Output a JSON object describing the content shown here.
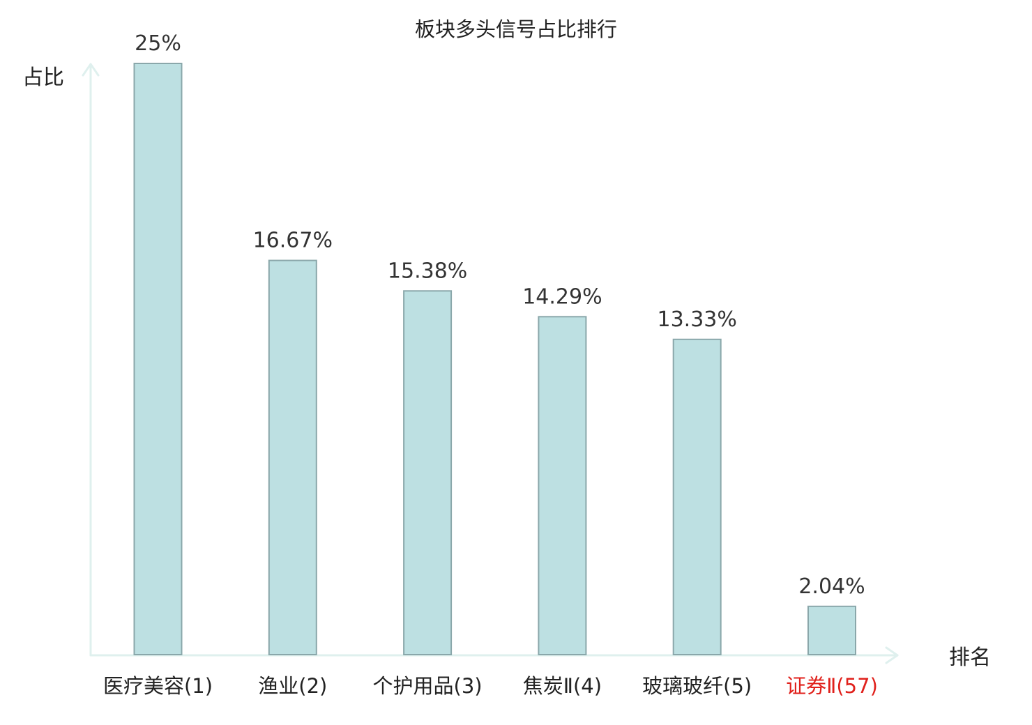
{
  "chart_data": {
    "type": "bar",
    "title": "板块多头信号占比排行",
    "ylabel": "占比",
    "xlabel": "排名",
    "categories": [
      "医疗美容(1)",
      "渔业(2)",
      "个护用品(3)",
      "焦炭Ⅱ(4)",
      "玻璃玻纤(5)",
      "证券Ⅱ(57)"
    ],
    "values": [
      25,
      16.67,
      15.38,
      14.29,
      13.33,
      2.04
    ],
    "value_labels": [
      "25%",
      "16.67%",
      "15.38%",
      "14.29%",
      "13.33%",
      "2.04%"
    ],
    "ylim": [
      0,
      25
    ],
    "grid": false,
    "highlight_index": 5,
    "colors": {
      "bar_fill": "#bde0e2",
      "bar_stroke": "#8aa7aa",
      "axis": "#dff0ee",
      "highlight_text": "#e0201b",
      "text": "#222222"
    }
  }
}
